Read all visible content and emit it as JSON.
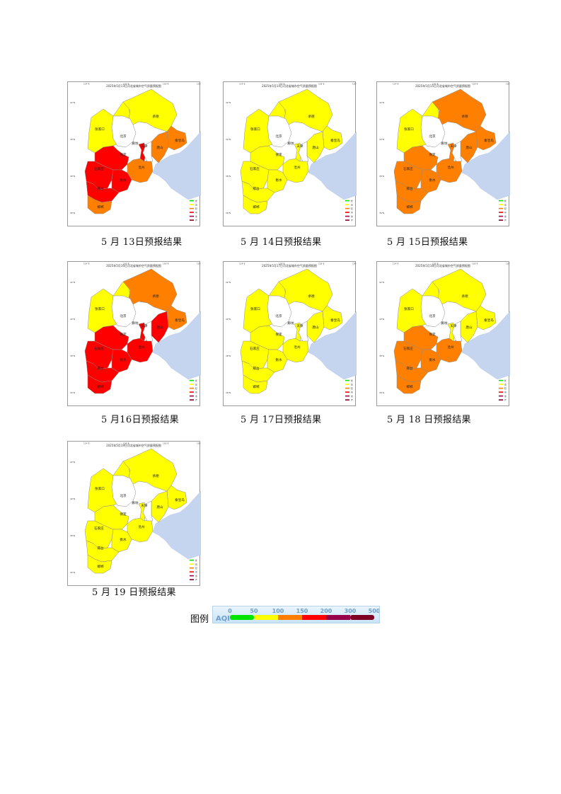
{
  "maps": [
    {
      "title": "2025年5月13日河北省城市空气质量预报图",
      "caption": "5 月 13日预报结果",
      "colors": {
        "zhangjiakou": "#ffff00",
        "chengde": "#ffff00",
        "qinhuangdao": "#ff8000",
        "tangshan": "#ff8000",
        "langfang": "#ff0000",
        "baoding": "#ff0000",
        "shijiazhuang": "#ff0000",
        "cangzhou": "#ff8000",
        "hengshui": "#ff0000",
        "xingtai": "#ff0000",
        "handan": "#ff8000"
      }
    },
    {
      "title": "2025年5月14日河北省城市空气质量预报图",
      "caption": "5 月 14日预报结果",
      "colors": {
        "zhangjiakou": "#ffff00",
        "chengde": "#ffff00",
        "qinhuangdao": "#ffff00",
        "tangshan": "#ffff00",
        "langfang": "#ffff00",
        "baoding": "#ffff00",
        "shijiazhuang": "#ffff00",
        "cangzhou": "#ffff00",
        "hengshui": "#ffff00",
        "xingtai": "#ffff00",
        "handan": "#ffff00"
      }
    },
    {
      "title": "2025年5月15日河北省城市空气质量预报图",
      "caption": "5 月 15日预报结果",
      "colors": {
        "zhangjiakou": "#ffff00",
        "chengde": "#ff8000",
        "qinhuangdao": "#ff8000",
        "tangshan": "#ff8000",
        "langfang": "#ff8000",
        "baoding": "#ff8000",
        "shijiazhuang": "#ff8000",
        "cangzhou": "#ff8000",
        "hengshui": "#ff8000",
        "xingtai": "#ff8000",
        "handan": "#ff8000"
      }
    },
    {
      "title": "2025年5月16日河北省城市空气质量预报图",
      "caption": "5 月16日预报结果",
      "colors": {
        "zhangjiakou": "#ffff00",
        "chengde": "#ff8000",
        "qinhuangdao": "#ff8000",
        "tangshan": "#ff0000",
        "langfang": "#ff0000",
        "baoding": "#ff0000",
        "shijiazhuang": "#ff0000",
        "cangzhou": "#ff0000",
        "hengshui": "#ff0000",
        "xingtai": "#ff0000",
        "handan": "#ff0000"
      }
    },
    {
      "title": "2025年5月17日河北省城市空气质量预报图",
      "caption": "5 月 17日预报结果",
      "colors": {
        "zhangjiakou": "#ffff00",
        "chengde": "#ffff00",
        "qinhuangdao": "#ffff00",
        "tangshan": "#ffff00",
        "langfang": "#ffff00",
        "baoding": "#ffff00",
        "shijiazhuang": "#ffff00",
        "cangzhou": "#ffff00",
        "hengshui": "#ffff00",
        "xingtai": "#ffff00",
        "handan": "#ffff00"
      }
    },
    {
      "title": "2025年5月18日河北省城市空气质量预报图",
      "caption": "5 月 18 日预报结果",
      "colors": {
        "zhangjiakou": "#ffff00",
        "chengde": "#ffff00",
        "qinhuangdao": "#ffff00",
        "tangshan": "#ffff00",
        "langfang": "#ffff00",
        "baoding": "#ff8000",
        "shijiazhuang": "#ff8000",
        "cangzhou": "#ff8000",
        "hengshui": "#ff8000",
        "xingtai": "#ff8000",
        "handan": "#ff8000"
      }
    },
    {
      "title": "2025年5月19日河北省城市空气质量预报图",
      "caption": "5 月  19 日预报结果",
      "colors": {
        "zhangjiakou": "#ffff00",
        "chengde": "#ffff00",
        "qinhuangdao": "#ffff00",
        "tangshan": "#ffff00",
        "langfang": "#ffff00",
        "baoding": "#ffff00",
        "shijiazhuang": "#ffff00",
        "cangzhou": "#ffff00",
        "hengshui": "#ffff00",
        "xingtai": "#ffff00",
        "handan": "#ffff00"
      }
    }
  ],
  "city_labels": {
    "zhangjiakou": "张家口",
    "chengde": "承德",
    "beijing": "北京",
    "tianjin": "天津",
    "qinhuangdao": "秦皇岛",
    "tangshan": "唐山",
    "langfang": "廊坊",
    "baoding": "保定",
    "shijiazhuang": "石家庄",
    "cangzhou": "沧州",
    "hengshui": "衡水",
    "xingtai": "邢台",
    "handan": "邯郸"
  },
  "map_legend": [
    {
      "label": "优",
      "color": "#00e400"
    },
    {
      "label": "良",
      "color": "#ffff00"
    },
    {
      "label": "轻",
      "color": "#ff7e00"
    },
    {
      "label": "中",
      "color": "#ff0000"
    },
    {
      "label": "重",
      "color": "#99004c"
    },
    {
      "label": "严",
      "color": "#7e0023"
    }
  ],
  "lon_ticks": [
    "114°E",
    "116°E",
    "118°E",
    "120°E"
  ],
  "lat_ticks": [
    "42°N",
    "40°N",
    "38°N",
    "36°N"
  ],
  "legend": {
    "label": "图例",
    "bar_label": "AQI",
    "ticks": [
      "0",
      "50",
      "100",
      "150",
      "200",
      "300",
      "500"
    ],
    "segments": [
      "#00e400",
      "#ffff00",
      "#ff7e00",
      "#ff0000",
      "#99004c",
      "#7e0023"
    ]
  }
}
